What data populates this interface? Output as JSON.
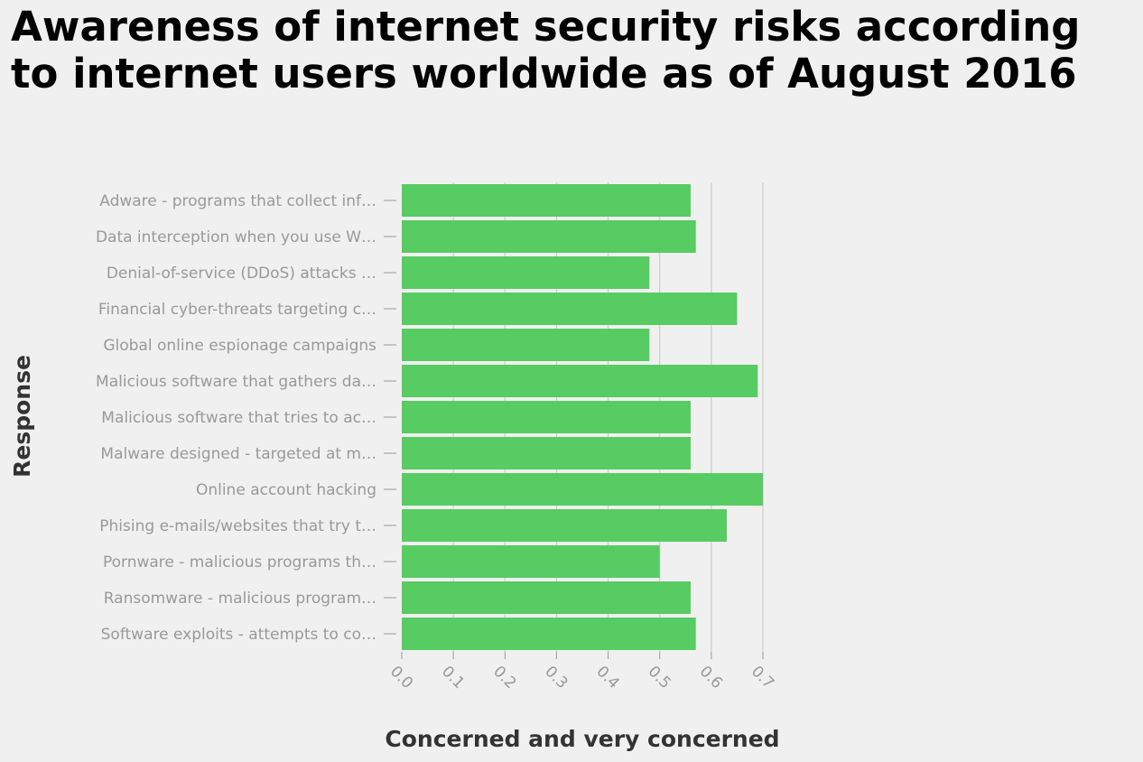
{
  "chart_data": {
    "type": "bar",
    "orientation": "horizontal",
    "title": "Awareness of internet security risks according to internet users worldwide as of August 2016",
    "xlabel": "Concerned and very concerned",
    "ylabel": "Response",
    "xlim": [
      0,
      0.7
    ],
    "x_ticks": [
      "0.0",
      "0.1",
      "0.2",
      "0.3",
      "0.4",
      "0.5",
      "0.6",
      "0.7"
    ],
    "grid": true,
    "bar_color": "#57cc62",
    "categories": [
      "Adware - programs that collect inf…",
      "Data interception when you use W…",
      "Denial-of-service (DDoS) attacks …",
      "Financial cyber-threats targeting c…",
      "Global online espionage campaigns",
      "Malicious software that gathers da…",
      "Malicious software that tries to ac…",
      "Malware designed - targeted at m…",
      "Online account hacking",
      "Phising e-mails/websites that try t…",
      "Pornware - malicious programs th…",
      "Ransomware - malicious program…",
      "Software exploits - attempts to co…"
    ],
    "values": [
      0.56,
      0.57,
      0.48,
      0.65,
      0.48,
      0.69,
      0.56,
      0.56,
      0.7,
      0.63,
      0.5,
      0.56,
      0.57
    ]
  }
}
